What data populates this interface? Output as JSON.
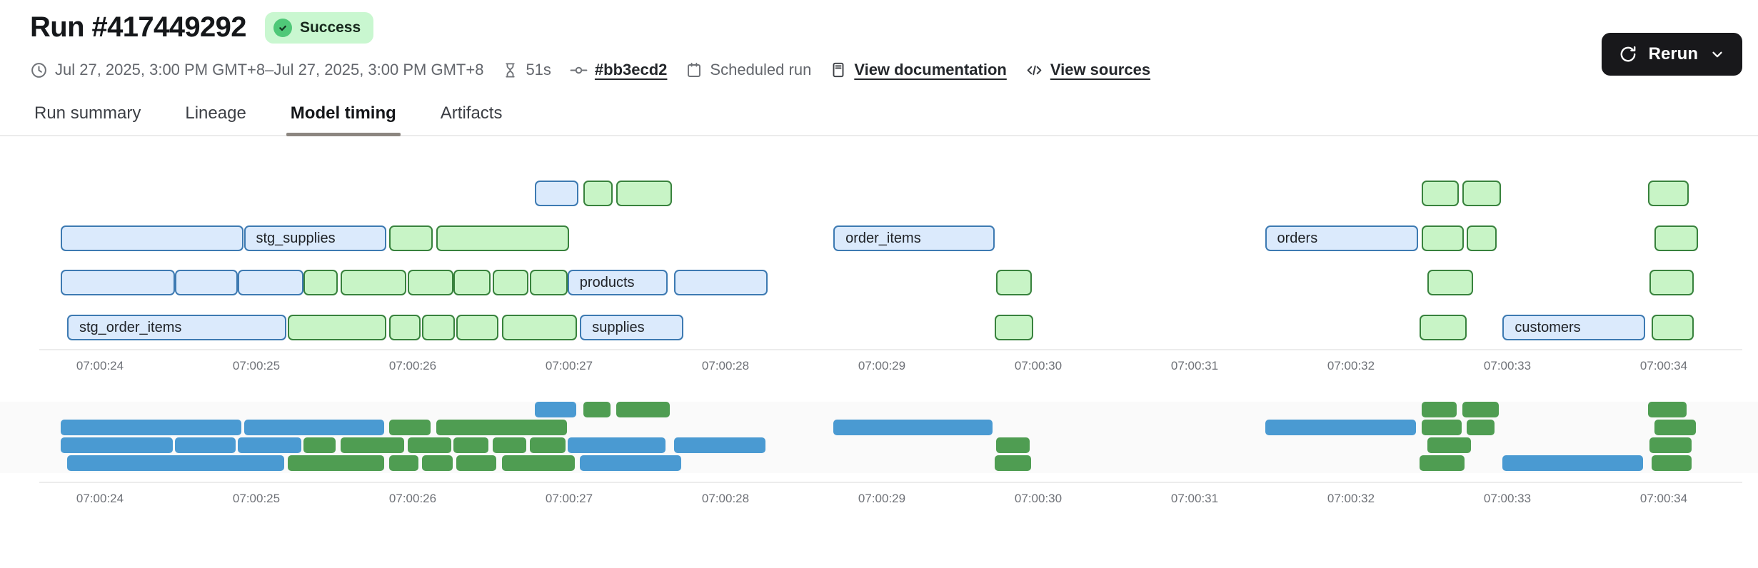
{
  "header": {
    "title": "Run #417449292",
    "status": "Success"
  },
  "actions": {
    "rerun_label": "Rerun"
  },
  "meta": {
    "date_range": "Jul 27, 2025, 3:00 PM GMT+8–Jul 27, 2025, 3:00 PM GMT+8",
    "duration": "51s",
    "commit": "#bb3ecd2",
    "trigger": "Scheduled run",
    "documentation_link": "View documentation",
    "sources_link": "View sources"
  },
  "tabs": [
    {
      "label": "Run summary",
      "active": false
    },
    {
      "label": "Lineage",
      "active": false
    },
    {
      "label": "Model timing",
      "active": true
    },
    {
      "label": "Artifacts",
      "active": false
    }
  ],
  "colors": {
    "status_badge_bg": "#c9f7d0",
    "status_badge_icon": "#4fc878",
    "bar_blue_fill": "#dbeafc",
    "bar_blue_border": "#3d7ab2",
    "bar_green_fill": "#c8f4c6",
    "bar_green_border": "#38823d",
    "minimap_blue": "#4a9ad2",
    "minimap_green": "#4f9d52",
    "rerun_button_bg": "#18181b",
    "active_tab_underline": "#8c8680"
  },
  "chart_data": {
    "type": "gantt",
    "title": "Model timing",
    "time_unit": "seconds after 07:00:00",
    "axis_ticks": [
      {
        "t": 24,
        "label": "07:00:24"
      },
      {
        "t": 25,
        "label": "07:00:25"
      },
      {
        "t": 26,
        "label": "07:00:26"
      },
      {
        "t": 27,
        "label": "07:00:27"
      },
      {
        "t": 28,
        "label": "07:00:28"
      },
      {
        "t": 29,
        "label": "07:00:29"
      },
      {
        "t": 30,
        "label": "07:00:30"
      },
      {
        "t": 31,
        "label": "07:00:31"
      },
      {
        "t": 32,
        "label": "07:00:32"
      },
      {
        "t": 33,
        "label": "07:00:33"
      },
      {
        "t": 34,
        "label": "07:00:34"
      }
    ],
    "lanes": 4,
    "bars": [
      {
        "lane": 0,
        "start": 26.78,
        "end": 27.06,
        "color": "blue",
        "label": ""
      },
      {
        "lane": 0,
        "start": 27.09,
        "end": 27.28,
        "color": "green",
        "label": ""
      },
      {
        "lane": 0,
        "start": 27.3,
        "end": 27.66,
        "color": "green",
        "label": ""
      },
      {
        "lane": 0,
        "start": 32.45,
        "end": 32.69,
        "color": "green",
        "label": ""
      },
      {
        "lane": 0,
        "start": 32.71,
        "end": 32.96,
        "color": "green",
        "label": ""
      },
      {
        "lane": 0,
        "start": 33.9,
        "end": 34.16,
        "color": "green",
        "label": ""
      },
      {
        "lane": 1,
        "start": 23.75,
        "end": 24.92,
        "color": "blue",
        "label": ""
      },
      {
        "lane": 1,
        "start": 24.92,
        "end": 25.83,
        "color": "blue",
        "label": "stg_supplies"
      },
      {
        "lane": 1,
        "start": 25.85,
        "end": 26.13,
        "color": "green",
        "label": ""
      },
      {
        "lane": 1,
        "start": 26.15,
        "end": 27.0,
        "color": "green",
        "label": ""
      },
      {
        "lane": 1,
        "start": 28.69,
        "end": 29.72,
        "color": "blue",
        "label": "order_items"
      },
      {
        "lane": 1,
        "start": 31.45,
        "end": 32.43,
        "color": "blue",
        "label": "orders"
      },
      {
        "lane": 1,
        "start": 32.45,
        "end": 32.72,
        "color": "green",
        "label": ""
      },
      {
        "lane": 1,
        "start": 32.74,
        "end": 32.93,
        "color": "green",
        "label": ""
      },
      {
        "lane": 1,
        "start": 33.94,
        "end": 34.22,
        "color": "green",
        "label": ""
      },
      {
        "lane": 2,
        "start": 23.75,
        "end": 24.48,
        "color": "blue",
        "label": ""
      },
      {
        "lane": 2,
        "start": 24.48,
        "end": 24.88,
        "color": "blue",
        "label": ""
      },
      {
        "lane": 2,
        "start": 24.88,
        "end": 25.3,
        "color": "blue",
        "label": ""
      },
      {
        "lane": 2,
        "start": 25.3,
        "end": 25.52,
        "color": "green",
        "label": ""
      },
      {
        "lane": 2,
        "start": 25.54,
        "end": 25.96,
        "color": "green",
        "label": ""
      },
      {
        "lane": 2,
        "start": 25.97,
        "end": 26.26,
        "color": "green",
        "label": ""
      },
      {
        "lane": 2,
        "start": 26.26,
        "end": 26.5,
        "color": "green",
        "label": ""
      },
      {
        "lane": 2,
        "start": 26.51,
        "end": 26.74,
        "color": "green",
        "label": ""
      },
      {
        "lane": 2,
        "start": 26.75,
        "end": 26.99,
        "color": "green",
        "label": ""
      },
      {
        "lane": 2,
        "start": 26.99,
        "end": 27.63,
        "color": "blue",
        "label": "products"
      },
      {
        "lane": 2,
        "start": 27.67,
        "end": 28.27,
        "color": "blue",
        "label": ""
      },
      {
        "lane": 2,
        "start": 29.73,
        "end": 29.96,
        "color": "green",
        "label": ""
      },
      {
        "lane": 2,
        "start": 32.49,
        "end": 32.78,
        "color": "green",
        "label": ""
      },
      {
        "lane": 2,
        "start": 33.91,
        "end": 34.19,
        "color": "green",
        "label": ""
      },
      {
        "lane": 3,
        "start": 23.79,
        "end": 25.19,
        "color": "blue",
        "label": "stg_order_items"
      },
      {
        "lane": 3,
        "start": 25.2,
        "end": 25.83,
        "color": "green",
        "label": ""
      },
      {
        "lane": 3,
        "start": 25.85,
        "end": 26.05,
        "color": "green",
        "label": ""
      },
      {
        "lane": 3,
        "start": 26.06,
        "end": 26.27,
        "color": "green",
        "label": ""
      },
      {
        "lane": 3,
        "start": 26.28,
        "end": 26.55,
        "color": "green",
        "label": ""
      },
      {
        "lane": 3,
        "start": 26.57,
        "end": 27.05,
        "color": "green",
        "label": ""
      },
      {
        "lane": 3,
        "start": 27.07,
        "end": 27.73,
        "color": "blue",
        "label": "supplies"
      },
      {
        "lane": 3,
        "start": 29.72,
        "end": 29.97,
        "color": "green",
        "label": ""
      },
      {
        "lane": 3,
        "start": 32.44,
        "end": 32.74,
        "color": "green",
        "label": ""
      },
      {
        "lane": 3,
        "start": 32.97,
        "end": 33.88,
        "color": "blue",
        "label": "customers"
      },
      {
        "lane": 3,
        "start": 33.92,
        "end": 34.19,
        "color": "green",
        "label": ""
      }
    ]
  }
}
